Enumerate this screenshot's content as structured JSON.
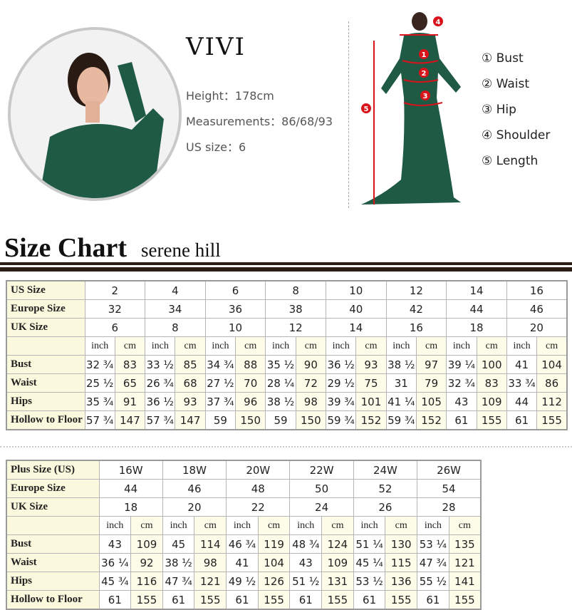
{
  "model": {
    "name": "VIVI",
    "height": "Height：178cm",
    "measurements": "Measurements：86/68/93",
    "us_size": "US size：6"
  },
  "figure_markers": [
    "1",
    "2",
    "3",
    "4",
    "5"
  ],
  "legend": [
    "① Bust",
    "② Waist",
    "③ Hip",
    "④ Shoulder",
    "⑤ Length"
  ],
  "size_chart": {
    "title": "Size Chart",
    "subtitle": "serene hill"
  },
  "colors": {
    "dress": "#1f5a45",
    "marker": "#d8131b",
    "label_bg": "#fbf9dd",
    "rule": "#2b1e16"
  },
  "standard_table": {
    "header_rows": [
      {
        "label": "US Size",
        "values": [
          "2",
          "4",
          "6",
          "8",
          "10",
          "12",
          "14",
          "16"
        ]
      },
      {
        "label": "Europe Size",
        "values": [
          "32",
          "34",
          "36",
          "38",
          "40",
          "42",
          "44",
          "46"
        ]
      },
      {
        "label": "UK Size",
        "values": [
          "6",
          "8",
          "10",
          "12",
          "14",
          "16",
          "18",
          "20"
        ]
      }
    ],
    "units": [
      "inch",
      "cm"
    ],
    "rows": [
      {
        "label": "Bust",
        "values": [
          "32 ¾",
          "83",
          "33 ½",
          "85",
          "34 ¾",
          "88",
          "35 ½",
          "90",
          "36 ½",
          "93",
          "38 ½",
          "97",
          "39 ¼",
          "100",
          "41",
          "104"
        ]
      },
      {
        "label": "Waist",
        "values": [
          "25 ½",
          "65",
          "26 ¾",
          "68",
          "27 ½",
          "70",
          "28 ¼",
          "72",
          "29 ½",
          "75",
          "31",
          "79",
          "32 ¾",
          "83",
          "33 ¾",
          "86"
        ]
      },
      {
        "label": "Hips",
        "values": [
          "35 ¾",
          "91",
          "36 ½",
          "93",
          "37 ¾",
          "96",
          "38 ½",
          "98",
          "39 ¾",
          "101",
          "41 ¼",
          "105",
          "43",
          "109",
          "44",
          "112"
        ]
      },
      {
        "label": "Hollow to Floor",
        "values": [
          "57 ¾",
          "147",
          "57 ¾",
          "147",
          "59",
          "150",
          "59",
          "150",
          "59 ¾",
          "152",
          "59 ¾",
          "152",
          "61",
          "155",
          "61",
          "155"
        ]
      }
    ]
  },
  "plus_table": {
    "header_rows": [
      {
        "label": "Plus Size (US)",
        "values": [
          "16W",
          "18W",
          "20W",
          "22W",
          "24W",
          "26W"
        ]
      },
      {
        "label": "Europe Size",
        "values": [
          "44",
          "46",
          "48",
          "50",
          "52",
          "54"
        ]
      },
      {
        "label": "UK Size",
        "values": [
          "18",
          "20",
          "22",
          "24",
          "26",
          "28"
        ]
      }
    ],
    "units": [
      "inch",
      "cm"
    ],
    "rows": [
      {
        "label": "Bust",
        "values": [
          "43",
          "109",
          "45",
          "114",
          "46 ¾",
          "119",
          "48 ¾",
          "124",
          "51 ¼",
          "130",
          "53 ¼",
          "135"
        ]
      },
      {
        "label": "Waist",
        "values": [
          "36 ¼",
          "92",
          "38 ½",
          "98",
          "41",
          "104",
          "43",
          "109",
          "45 ¼",
          "115",
          "47 ¾",
          "121"
        ]
      },
      {
        "label": "Hips",
        "values": [
          "45 ¾",
          "116",
          "47 ¾",
          "121",
          "49 ½",
          "126",
          "51 ½",
          "131",
          "53 ½",
          "136",
          "55 ½",
          "141"
        ]
      },
      {
        "label": "Hollow to Floor",
        "values": [
          "61",
          "155",
          "61",
          "155",
          "61",
          "155",
          "61",
          "155",
          "61",
          "155",
          "61",
          "155"
        ]
      }
    ]
  }
}
